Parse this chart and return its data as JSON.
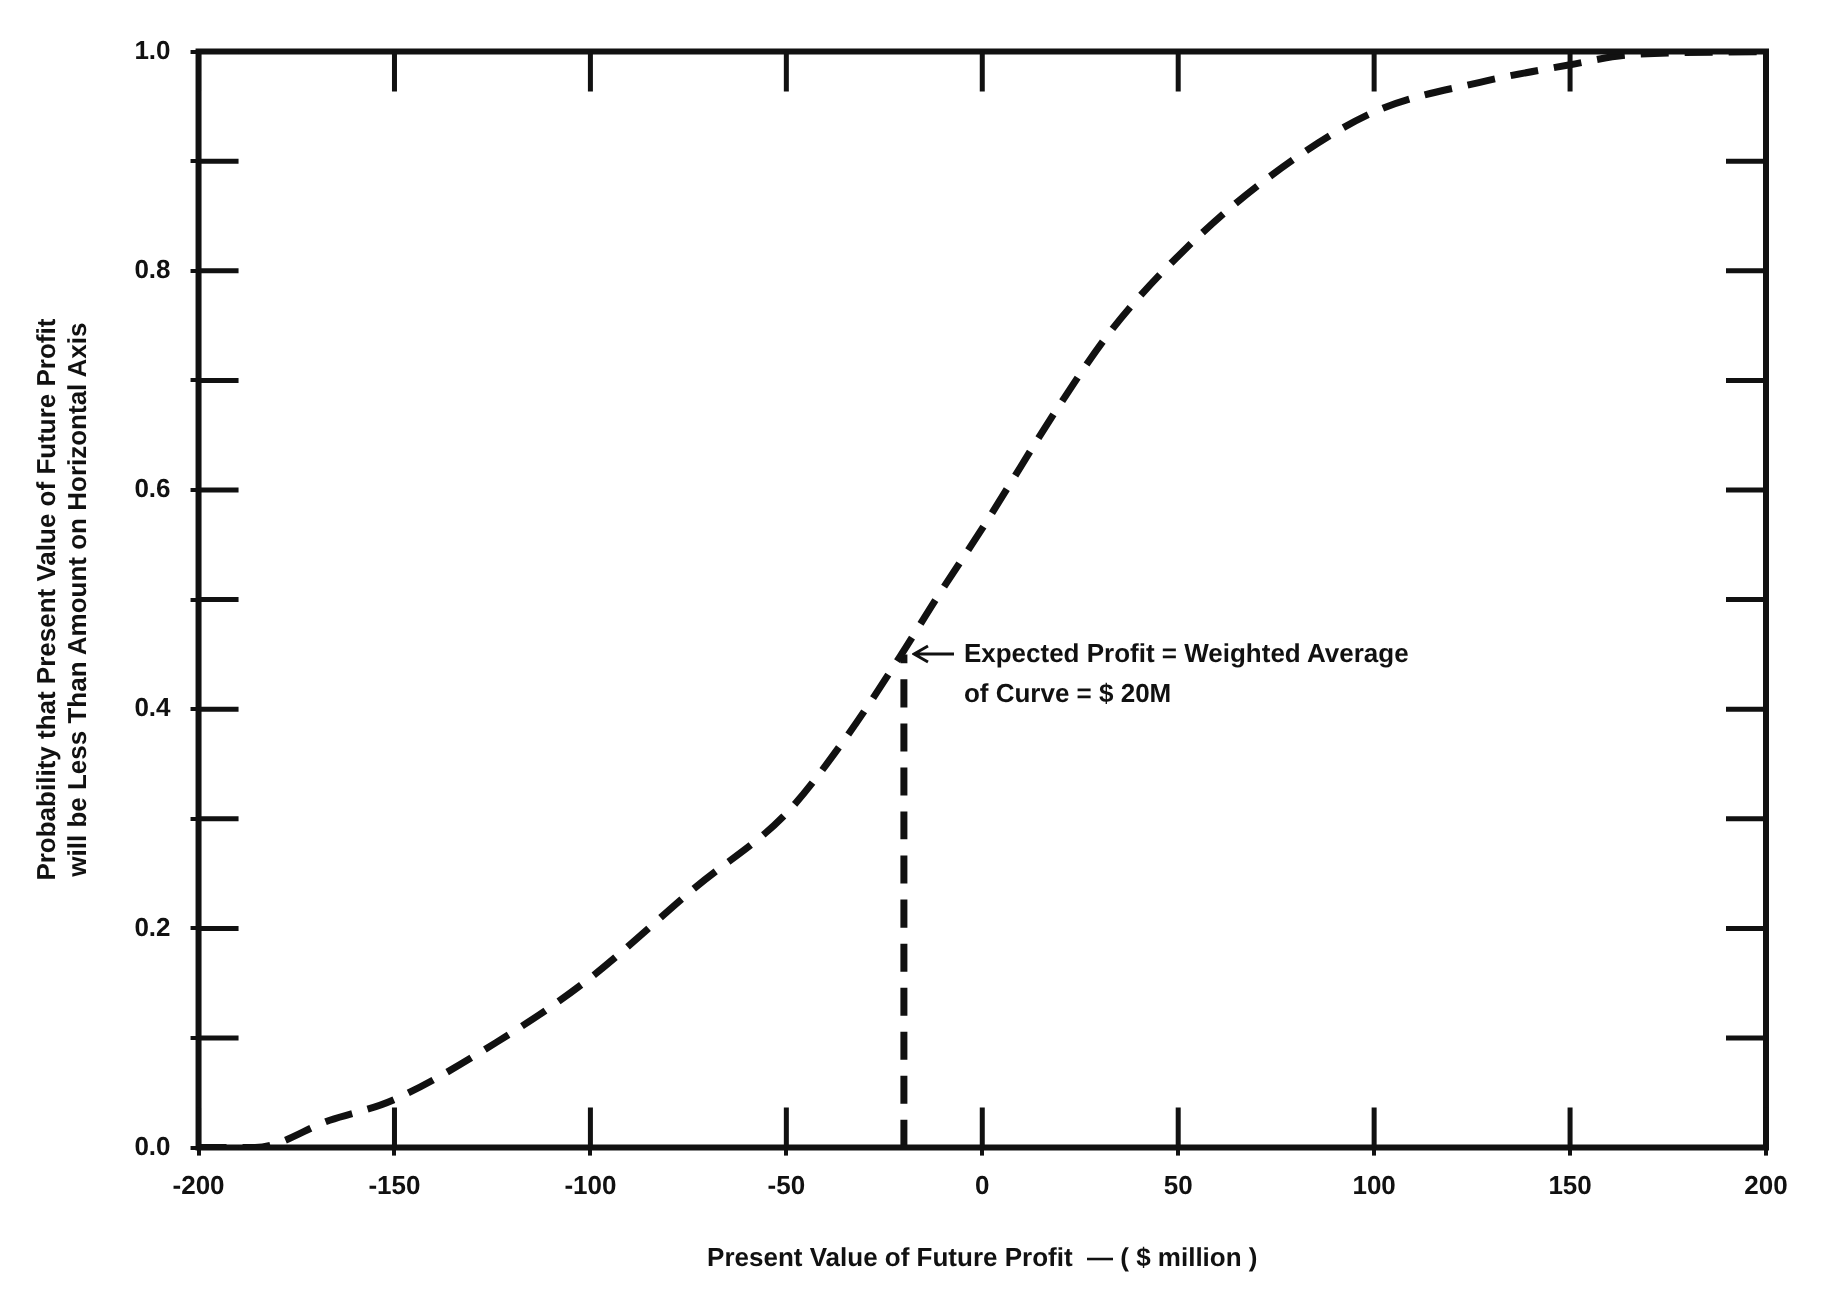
{
  "chart_data": {
    "type": "line",
    "xlabel": "Present Value of Future Profit  — ( $ million )",
    "ylabel": "Probability that Present Value of Future Profit\nwill be Less Than Amount on Horizontal Axis",
    "series": [
      {
        "color": "#111111",
        "line_style": "dashed",
        "x": [
          -200,
          -185.6,
          -166.5,
          -150.6,
          -124,
          -100.7,
          -73,
          -50,
          -35,
          -21,
          -11.7,
          0,
          20,
          33,
          51,
          73,
          100,
          127,
          150,
          165,
          199
        ],
        "values": [
          0,
          0,
          0.025,
          0.043,
          0.096,
          0.153,
          0.238,
          0.305,
          0.373,
          0.448,
          0.501,
          0.565,
          0.679,
          0.746,
          0.817,
          0.885,
          0.945,
          0.972,
          0.988,
          0.997,
          1.0
        ]
      },
      {
        "color": "#111111",
        "line_style": "dashed",
        "x": [
          -20,
          -20
        ],
        "values": [
          0,
          0.45
        ]
      }
    ],
    "annotations": [
      {
        "text": "Expected Profit = Weighted Average\nof Curve = $ 20M",
        "x": -20,
        "y": 0.45
      }
    ],
    "xlim": [
      -200,
      200
    ],
    "xticks": [
      -200,
      -150,
      -100,
      -50,
      0,
      50,
      100,
      150,
      200
    ],
    "ylim": [
      0,
      1
    ],
    "yticks": [
      {
        "value": 0,
        "label": "0.0"
      },
      {
        "value": 0.1,
        "label": null
      },
      0.2,
      {
        "value": 0.3,
        "label": null
      },
      0.4,
      {
        "value": 0.5,
        "label": null
      },
      0.6,
      {
        "value": 0.7,
        "label": null
      },
      0.8,
      {
        "value": 0.9,
        "label": null
      },
      {
        "value": 1,
        "label": "1.0"
      }
    ],
    "grid": false,
    "legend": false,
    "marker": "none"
  }
}
